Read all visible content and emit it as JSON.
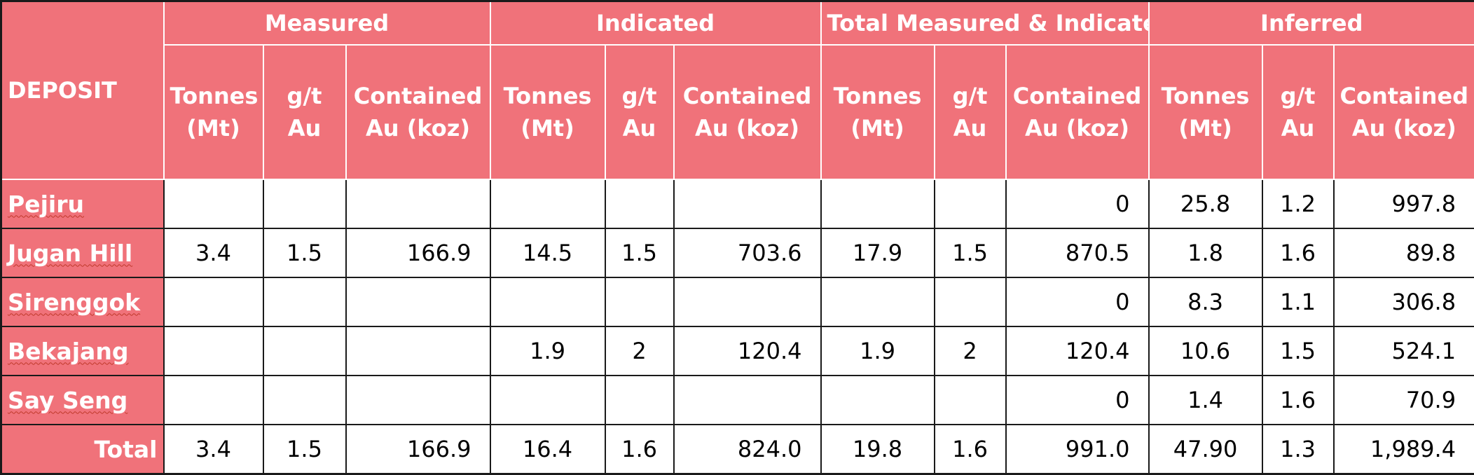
{
  "table": {
    "group_headers": [
      "Measured",
      "Indicated",
      "Total Measured & Indicated",
      "Inferred"
    ],
    "deposit_header": "DEPOSIT",
    "sub_headers": [
      "Tonnes (Mt)",
      "g/t Au",
      "Contained Au (koz)",
      "Tonnes (Mt)",
      "g/t Au",
      "Contained Au (koz)",
      "Tonnes (Mt)",
      "g/t Au",
      "Contained Au (koz)",
      "Tonnes (Mt)",
      "g/t Au",
      "Contained Au (koz)"
    ],
    "rows": [
      {
        "deposit": "Pejiru",
        "values": [
          "",
          "",
          "",
          "",
          "",
          "",
          "",
          "",
          "0",
          "25.8",
          "1.2",
          "997.8"
        ]
      },
      {
        "deposit": "Jugan Hill",
        "values": [
          "3.4",
          "1.5",
          "166.9",
          "14.5",
          "1.5",
          "703.6",
          "17.9",
          "1.5",
          "870.5",
          "1.8",
          "1.6",
          "89.8"
        ]
      },
      {
        "deposit": "Sirenggok",
        "values": [
          "",
          "",
          "",
          "",
          "",
          "",
          "",
          "",
          "0",
          "8.3",
          "1.1",
          "306.8"
        ]
      },
      {
        "deposit": "Bekajang",
        "values": [
          "",
          "",
          "",
          "1.9",
          "2",
          "120.4",
          "1.9",
          "2",
          "120.4",
          "10.6",
          "1.5",
          "524.1"
        ]
      },
      {
        "deposit": "Say Seng",
        "values": [
          "",
          "",
          "",
          "",
          "",
          "",
          "",
          "",
          "0",
          "1.4",
          "1.6",
          "70.9"
        ]
      }
    ],
    "total": {
      "label": "Total",
      "values": [
        "3.4",
        "1.5",
        "166.9",
        "16.4",
        "1.6",
        "824.0",
        "19.8",
        "1.6",
        "991.0",
        "47.90",
        "1.3",
        "1,989.4"
      ]
    }
  },
  "colors": {
    "header_bg": "#f0727a",
    "header_text": "#ffffff",
    "grid": "#1a1a1a"
  }
}
